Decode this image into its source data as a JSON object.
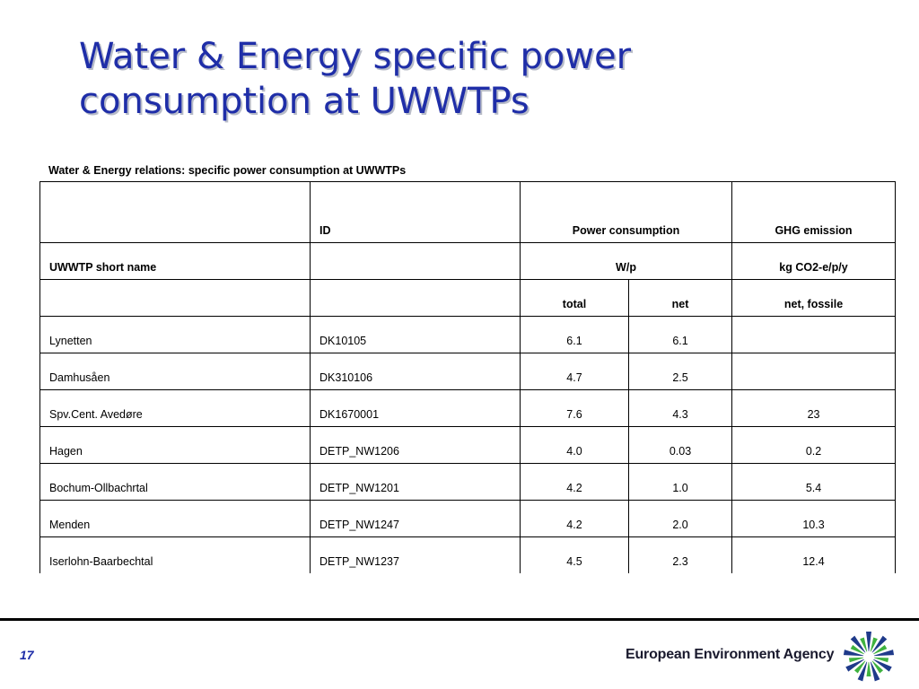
{
  "slide": {
    "title_line1": "Water & Energy specific power",
    "title_line2": "consumption at UWWTPs",
    "caption": "Water & Energy relations: specific power consumption at UWWTPs",
    "page_number": "17",
    "agency_name": "European Environment Agency",
    "title_color": "#1f2ea8"
  },
  "table": {
    "header1": {
      "col1": "",
      "col2": "ID",
      "col3": "Power consumption",
      "col4": "GHG emission"
    },
    "header2": {
      "col1": "UWWTP short name",
      "col2": "",
      "col3": "W/p",
      "col4": "kg CO2-e/p/y"
    },
    "header3": {
      "col1": "",
      "col2": "",
      "col3a": "total",
      "col3b": "net",
      "col4": "net, fossile"
    },
    "rows": [
      {
        "name": "Lynetten",
        "id": "DK10105",
        "total": "6.1",
        "net": "6.1",
        "ghg": ""
      },
      {
        "name": "Damhusåen",
        "id": "DK310106",
        "total": "4.7",
        "net": "2.5",
        "ghg": ""
      },
      {
        "name": "Spv.Cent. Avedøre",
        "id": "DK1670001",
        "total": "7.6",
        "net": "4.3",
        "ghg": "23"
      },
      {
        "name": "Hagen",
        "id": "DETP_NW1206",
        "total": "4.0",
        "net": "0.03",
        "ghg": "0.2"
      },
      {
        "name": "Bochum-Ollbachrtal",
        "id": "DETP_NW1201",
        "total": "4.2",
        "net": "1.0",
        "ghg": "5.4"
      },
      {
        "name": "Menden",
        "id": "DETP_NW1247",
        "total": "4.2",
        "net": "2.0",
        "ghg": "10.3"
      },
      {
        "name": "Iserlohn-Baarbechtal",
        "id": "DETP_NW1237",
        "total": "4.5",
        "net": "2.3",
        "ghg": "12.4"
      }
    ]
  }
}
